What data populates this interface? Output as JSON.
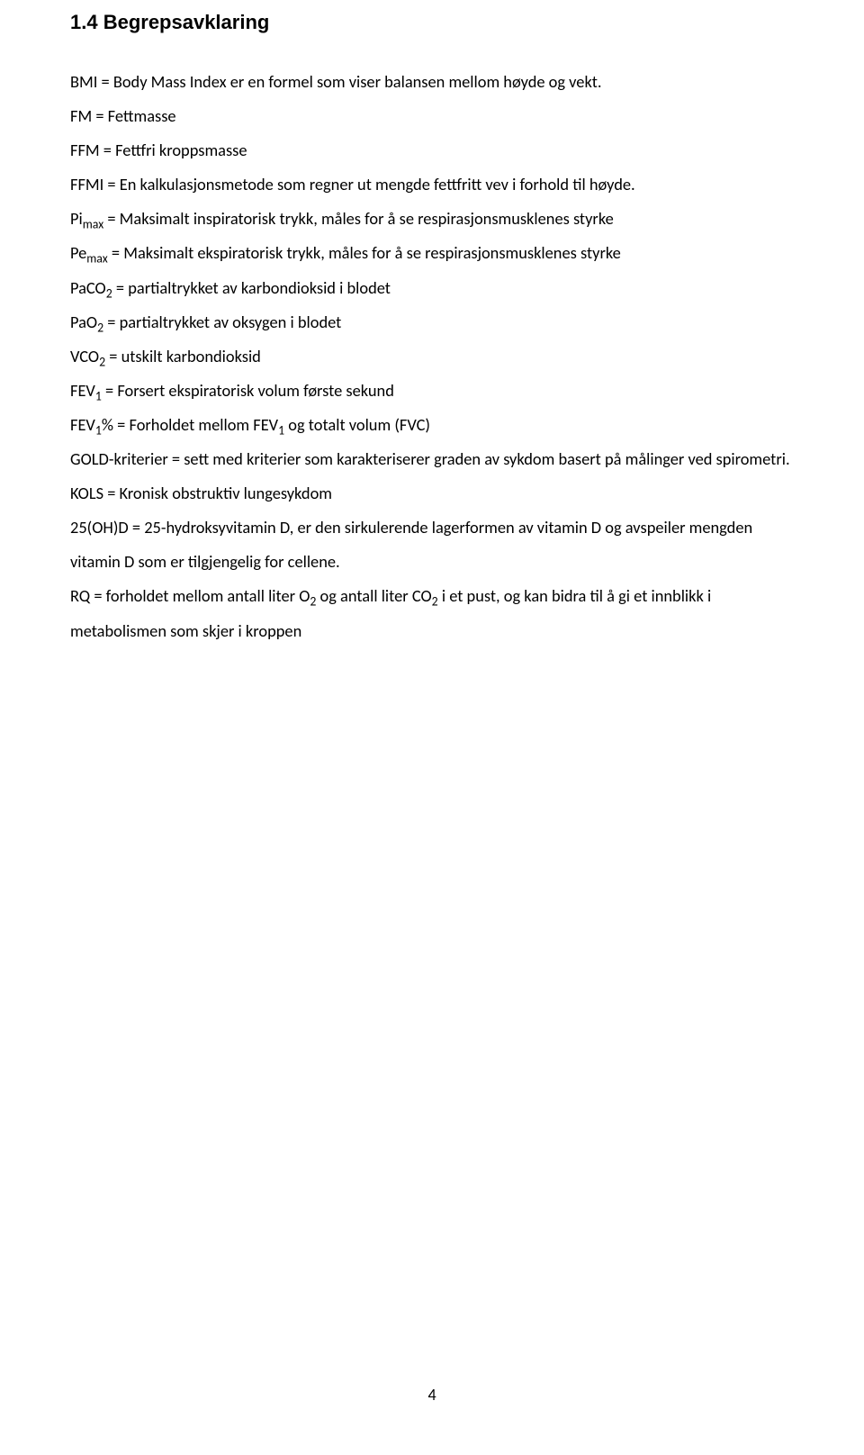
{
  "heading": "1.4 Begrepsavklaring",
  "lines": {
    "l1": "BMI = Body Mass Index er en formel som viser balansen mellom høyde og vekt.",
    "l2": "FM = Fettmasse",
    "l3": "FFM = Fettfri kroppsmasse",
    "l4": "FFMI = En kalkulasjonsmetode som regner ut mengde fettfritt vev i forhold til høyde.",
    "l5a": "Pi",
    "l5b": "max",
    "l5c": " = Maksimalt inspiratorisk trykk, måles for å se respirasjonsmusklenes styrke",
    "l6a": "Pe",
    "l6b": "max",
    "l6c": " = Maksimalt ekspiratorisk trykk, måles for å se respirasjonsmusklenes styrke",
    "l7a": "PaCO",
    "l7b": "2",
    "l7c": " = partialtrykket av karbondioksid i blodet",
    "l8a": "PaO",
    "l8b": "2",
    "l8c": " = partialtrykket av oksygen i blodet",
    "l9a": "VCO",
    "l9b": "2",
    "l9c": " = utskilt karbondioksid",
    "l10a": "FEV",
    "l10b": "1",
    "l10c": " = Forsert ekspiratorisk volum første sekund",
    "l11a": "FEV",
    "l11b": "1",
    "l11c": "% = Forholdet mellom FEV",
    "l11d": "1",
    "l11e": " og totalt volum (FVC)",
    "l12": "GOLD-kriterier = sett med kriterier som karakteriserer graden av sykdom basert på målinger ved spirometri.",
    "l13": "KOLS = Kronisk obstruktiv lungesykdom",
    "l14": "25(OH)D = 25-hydroksyvitamin D, er den sirkulerende lagerformen av vitamin D og avspeiler mengden vitamin D som er tilgjengelig for cellene.",
    "l15a": "RQ = forholdet mellom antall liter O",
    "l15b": "2",
    "l15c": " og antall liter CO",
    "l15d": "2",
    "l15e": " i et pust, og kan bidra til å gi et innblikk i metabolismen som skjer i kroppen"
  },
  "page_number": "4",
  "colors": {
    "text": "#000000",
    "background": "#ffffff"
  },
  "typography": {
    "heading_family": "Arial",
    "heading_weight": "bold",
    "heading_size_pt": 14,
    "body_family": "Calibri",
    "body_size_pt": 12,
    "line_height": 2.07
  }
}
